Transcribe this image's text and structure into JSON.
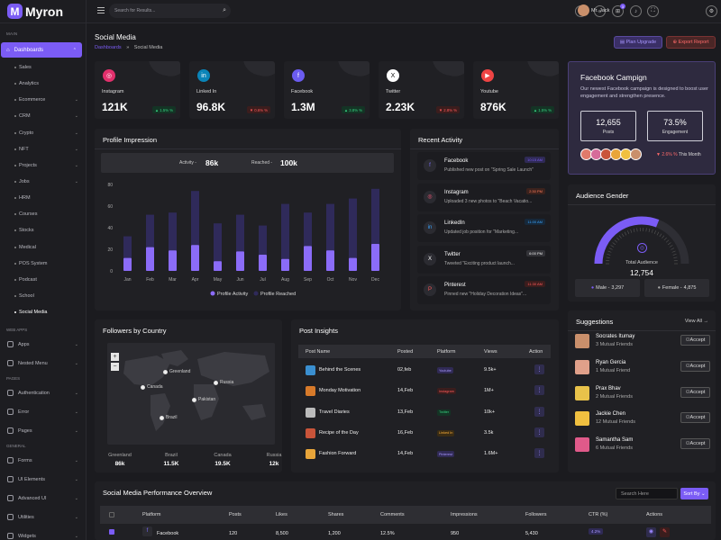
{
  "brand": "Myron",
  "sidebar": {
    "main_heading": "MAIN",
    "dashboards": "Dashboards",
    "sub_items": [
      {
        "label": "Sales",
        "chev": false
      },
      {
        "label": "Analytics",
        "chev": false
      },
      {
        "label": "Ecommerce",
        "chev": true
      },
      {
        "label": "CRM",
        "chev": true
      },
      {
        "label": "Crypto",
        "chev": true
      },
      {
        "label": "NFT",
        "chev": true
      },
      {
        "label": "Projects",
        "chev": true
      },
      {
        "label": "Jobs",
        "chev": true
      },
      {
        "label": "HRM",
        "chev": false
      },
      {
        "label": "Courses",
        "chev": false
      },
      {
        "label": "Stocks",
        "chev": false
      },
      {
        "label": "Medical",
        "chev": false
      },
      {
        "label": "POS System",
        "chev": false
      },
      {
        "label": "Podcast",
        "chev": false
      },
      {
        "label": "School",
        "chev": false
      },
      {
        "label": "Social Media",
        "chev": false
      }
    ],
    "webapps_heading": "WEB APPS",
    "webapps": [
      "Apps",
      "Nested Menu"
    ],
    "pages_heading": "PAGES",
    "pages": [
      "Authentication",
      "Error",
      "Pages"
    ],
    "general_heading": "GENERAL",
    "general": [
      "Forms",
      "UI Elements",
      "Advanced UI",
      "Utilities",
      "Widgets"
    ]
  },
  "topbar": {
    "search_placeholder": "Search for Results...",
    "notif_count": "3",
    "user": "Mr. Jack"
  },
  "page": {
    "title": "Social Media",
    "crumb_parent": "Dashboards",
    "crumb_sep": "»",
    "crumb_current": "Social Media",
    "plan_btn": "Plan Upgrade",
    "export_btn": "Export Report"
  },
  "stats": [
    {
      "label": "Instagram",
      "value": "121K",
      "change": "▲ 1.5% %",
      "dir": "up",
      "color": "#e1306c",
      "icon": "◎"
    },
    {
      "label": "Linked In",
      "value": "96.8K",
      "change": "▼ 0.6% %",
      "dir": "down",
      "color": "#0a84b8",
      "icon": "in"
    },
    {
      "label": "Facebook",
      "value": "1.3M",
      "change": "▲ 3.8% %",
      "dir": "up",
      "color": "#6b5cf0",
      "icon": "f"
    },
    {
      "label": "Twitter",
      "value": "2.23K",
      "change": "▼ 2.8% %",
      "dir": "down",
      "color": "#ffffff",
      "icon": "X"
    },
    {
      "label": "Youtube",
      "value": "876K",
      "change": "▲ 1.5% %",
      "dir": "up",
      "color": "#ef4444",
      "icon": "▶"
    }
  ],
  "campaign": {
    "title": "Facebook Campign",
    "desc": "Our newest Facebook campaign is designed to boost user engagement and strengthen presence.",
    "posts_value": "12,655",
    "posts_label": "Posts",
    "eng_value": "73.5%",
    "eng_label": "Engagement",
    "change": "▼ 2.6% %",
    "change_suffix": "This Month"
  },
  "impression": {
    "title": "Profile Impression",
    "activity_label": "Activity -",
    "activity_value": "86k",
    "reached_label": "Reached -",
    "reached_value": "100k",
    "legend_a": "Profile Activity",
    "legend_b": "Profile Reached"
  },
  "chart_data": {
    "type": "bar",
    "categories": [
      "Jan",
      "Feb",
      "Mar",
      "Apr",
      "May",
      "Jun",
      "Jul",
      "Aug",
      "Sep",
      "Oct",
      "Nov",
      "Dec"
    ],
    "series": [
      {
        "name": "Profile Activity",
        "color": "#8b6cf8",
        "values": [
          12,
          22,
          19,
          24,
          9,
          18,
          15,
          11,
          23,
          19,
          12,
          25
        ]
      },
      {
        "name": "Profile Reached",
        "color": "#2f2a5a",
        "values": [
          32,
          52,
          54,
          74,
          44,
          52,
          42,
          62,
          54,
          62,
          67,
          76
        ]
      }
    ],
    "ylim": [
      0,
      80
    ],
    "yticks": [
      0,
      20,
      40,
      60,
      80
    ]
  },
  "activity": {
    "title": "Recent Activity",
    "items": [
      {
        "name": "Facebook",
        "desc": "Published new post on \"Spring Sale Launch\"",
        "time": "10:15 AM",
        "tcolor": "#7b5cf5",
        "tbg": "#2f2a55",
        "icon": "f",
        "icolor": "#7b6cf8"
      },
      {
        "name": "Instagram",
        "desc": "Uploaded 3 new photos to \"Beach Vacatio...",
        "time": "2:30 PM",
        "tcolor": "#ff7a5a",
        "tbg": "#3b221d",
        "icon": "◎",
        "icolor": "#ff5a7a"
      },
      {
        "name": "LinkedIn",
        "desc": "Updated job position for \"Marketing...",
        "time": "11:00 AM",
        "tcolor": "#3aa5ff",
        "tbg": "#16283a",
        "icon": "in",
        "icolor": "#3aa5ff"
      },
      {
        "name": "Twitter",
        "desc": "Tweeted \"Exciting product launch...",
        "time": "6:00 PM",
        "tcolor": "#eeeeee",
        "tbg": "#333338",
        "icon": "X",
        "icolor": "#ffffff"
      },
      {
        "name": "Pinterest",
        "desc": "Pinned new \"Holiday Decoration Ideas\"...",
        "time": "11:30 AM",
        "tcolor": "#ff5a5a",
        "tbg": "#3b1d1d",
        "icon": "P",
        "icolor": "#ff5a5a"
      }
    ]
  },
  "gender": {
    "title": "Audience Gender",
    "total_label": "Total Audience",
    "total_value": "12,754",
    "male_label": "Male -",
    "male_value": "3,297",
    "female_label": "Female -",
    "female_value": "4,875",
    "male_share": 0.36
  },
  "followers": {
    "title": "Followers by Country",
    "zoom_in": "+",
    "zoom_out": "−",
    "pins": [
      "Greenland",
      "Canada",
      "Russia",
      "Pakistan",
      "Brazil"
    ],
    "countries": [
      {
        "name": "Greenland",
        "value": "86k"
      },
      {
        "name": "Brazil",
        "value": "11.5K"
      },
      {
        "name": "Canada",
        "value": "19.5K"
      },
      {
        "name": "Russia",
        "value": "12k"
      }
    ]
  },
  "posts": {
    "title": "Post Insights",
    "cols": [
      "Post Name",
      "Posted",
      "Platform",
      "Views",
      "Action"
    ],
    "rows": [
      {
        "name": "Behind the Scenes",
        "date": "02,feb",
        "platform": "Youtube",
        "views": "9.5k+",
        "pc": "#a796ff",
        "pb": "#302a55",
        "th": "#3a8fd0"
      },
      {
        "name": "Monday Motivation",
        "date": "14,Feb",
        "platform": "Instagram",
        "views": "1M+",
        "pc": "#ff5a5a",
        "pb": "#3b1d1d",
        "th": "#d77a2a"
      },
      {
        "name": "Travel Diaries",
        "date": "13,Feb",
        "platform": "Twitter",
        "views": "10k+",
        "pc": "#35d07f",
        "pb": "#143425",
        "th": "#bbbbbb"
      },
      {
        "name": "Recipe of the Day",
        "date": "16,Feb",
        "platform": "Linked In",
        "views": "3.5k",
        "pc": "#ffb03a",
        "pb": "#3a2c14",
        "th": "#c9543a"
      },
      {
        "name": "Fashion Forward",
        "date": "14,Feb",
        "platform": "Pinterest",
        "views": "1.6M+",
        "pc": "#a796ff",
        "pb": "#302a55",
        "th": "#e8a53a"
      }
    ],
    "action": "⋮"
  },
  "suggestions": {
    "title": "Suggestions",
    "view_all": "View All →",
    "btn": "Accept",
    "items": [
      {
        "name": "Socrates Itumay",
        "mutual": "3 Mutual Friends",
        "color": "#c98f6b"
      },
      {
        "name": "Ryan Gercia",
        "mutual": "1 Mutual Friend",
        "color": "#e0a08a"
      },
      {
        "name": "Prax Bhav",
        "mutual": "2 Mutual Friends",
        "color": "#e8c24a"
      },
      {
        "name": "Jackie Chen",
        "mutual": "12 Mutual Friends",
        "color": "#f0c040"
      },
      {
        "name": "Samantha Sam",
        "mutual": "6 Mutual Friends",
        "color": "#e05a8a"
      }
    ]
  },
  "overview": {
    "title": "Social Media Performance Overview",
    "search_placeholder": "Search Here",
    "sort": "Sort By ⌄",
    "cols": [
      "Platform",
      "Posts",
      "Likes",
      "Shares",
      "Comments",
      "Impressions",
      "Followers",
      "CTR (%)",
      "Actions"
    ],
    "row": {
      "platform": "Facebook",
      "posts": "120",
      "likes": "8,500",
      "shares": "1,200",
      "comments": "12.5%",
      "impressions": "950",
      "followers": "5,430",
      "ctr": "4.2%"
    }
  }
}
